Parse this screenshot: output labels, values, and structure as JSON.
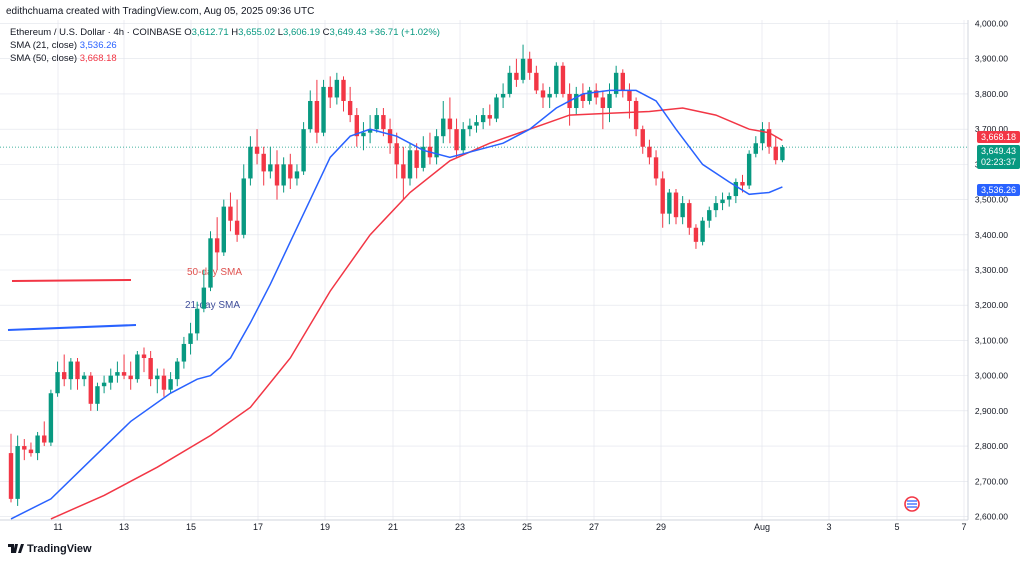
{
  "header": {
    "attribution": "edithchuama created with TradingView.com, Aug 05, 2025 09:36 UTC"
  },
  "legend": {
    "symbol": "Ethereum / U.S. Dollar · 4h · COINBASE",
    "o_label": "O",
    "o_value": "3,612.71",
    "h_label": "H",
    "h_value": "3,655.02",
    "l_label": "L",
    "l_value": "3,606.19",
    "c_label": "C",
    "c_value": "3,649.43",
    "change": "+36.71 (+1.02%)",
    "sma21_label": "SMA (21, close)",
    "sma21_value": "3,536.26",
    "sma50_label": "SMA (50, close)",
    "sma50_value": "3,668.18"
  },
  "price_labels": {
    "sma50": "3,668.18",
    "last": "3,649.43",
    "countdown": "02:23:37",
    "sma21": "3,536.26"
  },
  "annotations": {
    "sma50_note": "50-day SMA",
    "sma21_note": "21-day SMA"
  },
  "footer": {
    "brand": "TradingView"
  },
  "colors": {
    "up": "#089981",
    "down": "#f23645",
    "sma21": "#2962ff",
    "sma50": "#f23645",
    "grid": "#e0e3eb"
  },
  "chart_data": {
    "type": "candlestick",
    "title": "Ethereum / U.S. Dollar · 4h · COINBASE",
    "ylim": [
      2590,
      4010
    ],
    "y_ticks": [
      "4,000.00",
      "3,900.00",
      "3,800.00",
      "3,700.00",
      "3,600.00",
      "3,500.00",
      "3,400.00",
      "3,300.00",
      "3,200.00",
      "3,100.00",
      "3,000.00",
      "2,900.00",
      "2,800.00",
      "2,700.00",
      "2,600.00"
    ],
    "x_ticks": [
      "11",
      "13",
      "15",
      "17",
      "19",
      "21",
      "23",
      "25",
      "27",
      "29",
      "Aug",
      "3",
      "5",
      "7"
    ],
    "candles": [
      [
        2780,
        2835,
        2640,
        2650
      ],
      [
        2650,
        2830,
        2630,
        2800
      ],
      [
        2800,
        2820,
        2760,
        2790
      ],
      [
        2790,
        2810,
        2770,
        2780
      ],
      [
        2780,
        2840,
        2760,
        2830
      ],
      [
        2830,
        2870,
        2800,
        2810
      ],
      [
        2810,
        2960,
        2800,
        2950
      ],
      [
        2950,
        3040,
        2940,
        3010
      ],
      [
        3010,
        3060,
        2970,
        2990
      ],
      [
        2990,
        3050,
        2960,
        3040
      ],
      [
        3040,
        3050,
        2960,
        2990
      ],
      [
        2990,
        3010,
        2970,
        3000
      ],
      [
        3000,
        3010,
        2900,
        2920
      ],
      [
        2920,
        2980,
        2900,
        2970
      ],
      [
        2970,
        3000,
        2950,
        2980
      ],
      [
        2980,
        3020,
        2960,
        3000
      ],
      [
        3000,
        3040,
        2980,
        3010
      ],
      [
        3010,
        3060,
        2990,
        3000
      ],
      [
        3000,
        3040,
        2960,
        2990
      ],
      [
        2990,
        3070,
        2980,
        3060
      ],
      [
        3060,
        3080,
        3010,
        3050
      ],
      [
        3050,
        3070,
        2970,
        2990
      ],
      [
        2990,
        3020,
        2950,
        3000
      ],
      [
        3000,
        3020,
        2940,
        2960
      ],
      [
        2960,
        3010,
        2950,
        2990
      ],
      [
        2990,
        3050,
        2970,
        3040
      ],
      [
        3040,
        3110,
        3020,
        3090
      ],
      [
        3090,
        3150,
        3060,
        3120
      ],
      [
        3120,
        3210,
        3100,
        3190
      ],
      [
        3190,
        3300,
        3180,
        3250
      ],
      [
        3250,
        3410,
        3240,
        3390
      ],
      [
        3390,
        3450,
        3300,
        3350
      ],
      [
        3350,
        3500,
        3340,
        3480
      ],
      [
        3480,
        3520,
        3410,
        3440
      ],
      [
        3440,
        3500,
        3380,
        3400
      ],
      [
        3400,
        3600,
        3390,
        3560
      ],
      [
        3560,
        3680,
        3540,
        3650
      ],
      [
        3650,
        3700,
        3600,
        3630
      ],
      [
        3630,
        3650,
        3540,
        3580
      ],
      [
        3580,
        3650,
        3560,
        3600
      ],
      [
        3600,
        3640,
        3500,
        3540
      ],
      [
        3540,
        3620,
        3520,
        3600
      ],
      [
        3600,
        3630,
        3530,
        3560
      ],
      [
        3560,
        3600,
        3540,
        3580
      ],
      [
        3580,
        3720,
        3570,
        3700
      ],
      [
        3700,
        3810,
        3690,
        3780
      ],
      [
        3780,
        3840,
        3660,
        3690
      ],
      [
        3690,
        3840,
        3680,
        3820
      ],
      [
        3820,
        3850,
        3760,
        3790
      ],
      [
        3790,
        3860,
        3770,
        3840
      ],
      [
        3840,
        3850,
        3750,
        3780
      ],
      [
        3780,
        3820,
        3720,
        3740
      ],
      [
        3740,
        3760,
        3650,
        3680
      ],
      [
        3680,
        3720,
        3640,
        3690
      ],
      [
        3690,
        3740,
        3660,
        3700
      ],
      [
        3700,
        3760,
        3690,
        3740
      ],
      [
        3740,
        3760,
        3680,
        3700
      ],
      [
        3700,
        3730,
        3630,
        3660
      ],
      [
        3660,
        3690,
        3560,
        3600
      ],
      [
        3600,
        3650,
        3500,
        3560
      ],
      [
        3560,
        3660,
        3540,
        3640
      ],
      [
        3640,
        3660,
        3560,
        3590
      ],
      [
        3590,
        3680,
        3580,
        3650
      ],
      [
        3650,
        3690,
        3600,
        3620
      ],
      [
        3620,
        3700,
        3600,
        3680
      ],
      [
        3680,
        3780,
        3660,
        3730
      ],
      [
        3730,
        3790,
        3660,
        3700
      ],
      [
        3700,
        3730,
        3620,
        3640
      ],
      [
        3640,
        3720,
        3630,
        3700
      ],
      [
        3700,
        3730,
        3680,
        3710
      ],
      [
        3710,
        3740,
        3690,
        3720
      ],
      [
        3720,
        3760,
        3700,
        3740
      ],
      [
        3740,
        3770,
        3710,
        3730
      ],
      [
        3730,
        3800,
        3720,
        3790
      ],
      [
        3790,
        3830,
        3760,
        3800
      ],
      [
        3800,
        3880,
        3790,
        3860
      ],
      [
        3860,
        3900,
        3820,
        3840
      ],
      [
        3840,
        3940,
        3830,
        3900
      ],
      [
        3900,
        3920,
        3840,
        3860
      ],
      [
        3860,
        3880,
        3800,
        3810
      ],
      [
        3810,
        3830,
        3760,
        3790
      ],
      [
        3790,
        3820,
        3760,
        3800
      ],
      [
        3800,
        3890,
        3790,
        3880
      ],
      [
        3880,
        3890,
        3790,
        3800
      ],
      [
        3800,
        3830,
        3710,
        3760
      ],
      [
        3760,
        3820,
        3740,
        3800
      ],
      [
        3800,
        3830,
        3760,
        3780
      ],
      [
        3780,
        3820,
        3770,
        3810
      ],
      [
        3810,
        3830,
        3770,
        3790
      ],
      [
        3790,
        3810,
        3700,
        3760
      ],
      [
        3760,
        3830,
        3720,
        3800
      ],
      [
        3800,
        3880,
        3790,
        3860
      ],
      [
        3860,
        3870,
        3790,
        3810
      ],
      [
        3810,
        3830,
        3730,
        3780
      ],
      [
        3780,
        3790,
        3680,
        3700
      ],
      [
        3700,
        3710,
        3630,
        3650
      ],
      [
        3650,
        3670,
        3600,
        3620
      ],
      [
        3620,
        3640,
        3540,
        3560
      ],
      [
        3560,
        3580,
        3420,
        3460
      ],
      [
        3460,
        3530,
        3430,
        3520
      ],
      [
        3520,
        3530,
        3430,
        3450
      ],
      [
        3450,
        3510,
        3430,
        3490
      ],
      [
        3490,
        3500,
        3400,
        3420
      ],
      [
        3420,
        3430,
        3360,
        3380
      ],
      [
        3380,
        3450,
        3370,
        3440
      ],
      [
        3440,
        3480,
        3420,
        3470
      ],
      [
        3470,
        3510,
        3450,
        3490
      ],
      [
        3490,
        3520,
        3470,
        3500
      ],
      [
        3500,
        3520,
        3480,
        3510
      ],
      [
        3510,
        3560,
        3490,
        3550
      ],
      [
        3550,
        3570,
        3520,
        3540
      ],
      [
        3540,
        3640,
        3530,
        3630
      ],
      [
        3630,
        3680,
        3620,
        3660
      ],
      [
        3660,
        3720,
        3640,
        3700
      ],
      [
        3700,
        3720,
        3630,
        3650
      ],
      [
        3650,
        3680,
        3600,
        3612
      ],
      [
        3612,
        3655,
        3606,
        3649
      ]
    ],
    "sma21": [
      [
        0,
        2593
      ],
      [
        6,
        2650
      ],
      [
        12,
        2760
      ],
      [
        18,
        2870
      ],
      [
        24,
        2950
      ],
      [
        28,
        2990
      ],
      [
        30,
        3000
      ],
      [
        33,
        3050
      ],
      [
        36,
        3150
      ],
      [
        39,
        3260
      ],
      [
        42,
        3380
      ],
      [
        45,
        3500
      ],
      [
        48,
        3620
      ],
      [
        51,
        3680
      ],
      [
        54,
        3700
      ],
      [
        58,
        3680
      ],
      [
        62,
        3640
      ],
      [
        66,
        3620
      ],
      [
        70,
        3640
      ],
      [
        74,
        3660
      ],
      [
        78,
        3700
      ],
      [
        82,
        3760
      ],
      [
        86,
        3800
      ],
      [
        90,
        3810
      ],
      [
        94,
        3810
      ],
      [
        97,
        3780
      ],
      [
        100,
        3700
      ],
      [
        104,
        3600
      ],
      [
        108,
        3550
      ],
      [
        111,
        3515
      ],
      [
        114,
        3520
      ],
      [
        116,
        3536
      ]
    ],
    "sma50": [
      [
        6,
        2593
      ],
      [
        14,
        2660
      ],
      [
        22,
        2740
      ],
      [
        30,
        2830
      ],
      [
        36,
        2910
      ],
      [
        42,
        3050
      ],
      [
        48,
        3240
      ],
      [
        54,
        3400
      ],
      [
        60,
        3520
      ],
      [
        66,
        3610
      ],
      [
        72,
        3660
      ],
      [
        78,
        3700
      ],
      [
        84,
        3740
      ],
      [
        90,
        3745
      ],
      [
        96,
        3750
      ],
      [
        101,
        3760
      ],
      [
        106,
        3740
      ],
      [
        111,
        3700
      ],
      [
        114,
        3690
      ],
      [
        116,
        3668
      ]
    ]
  }
}
